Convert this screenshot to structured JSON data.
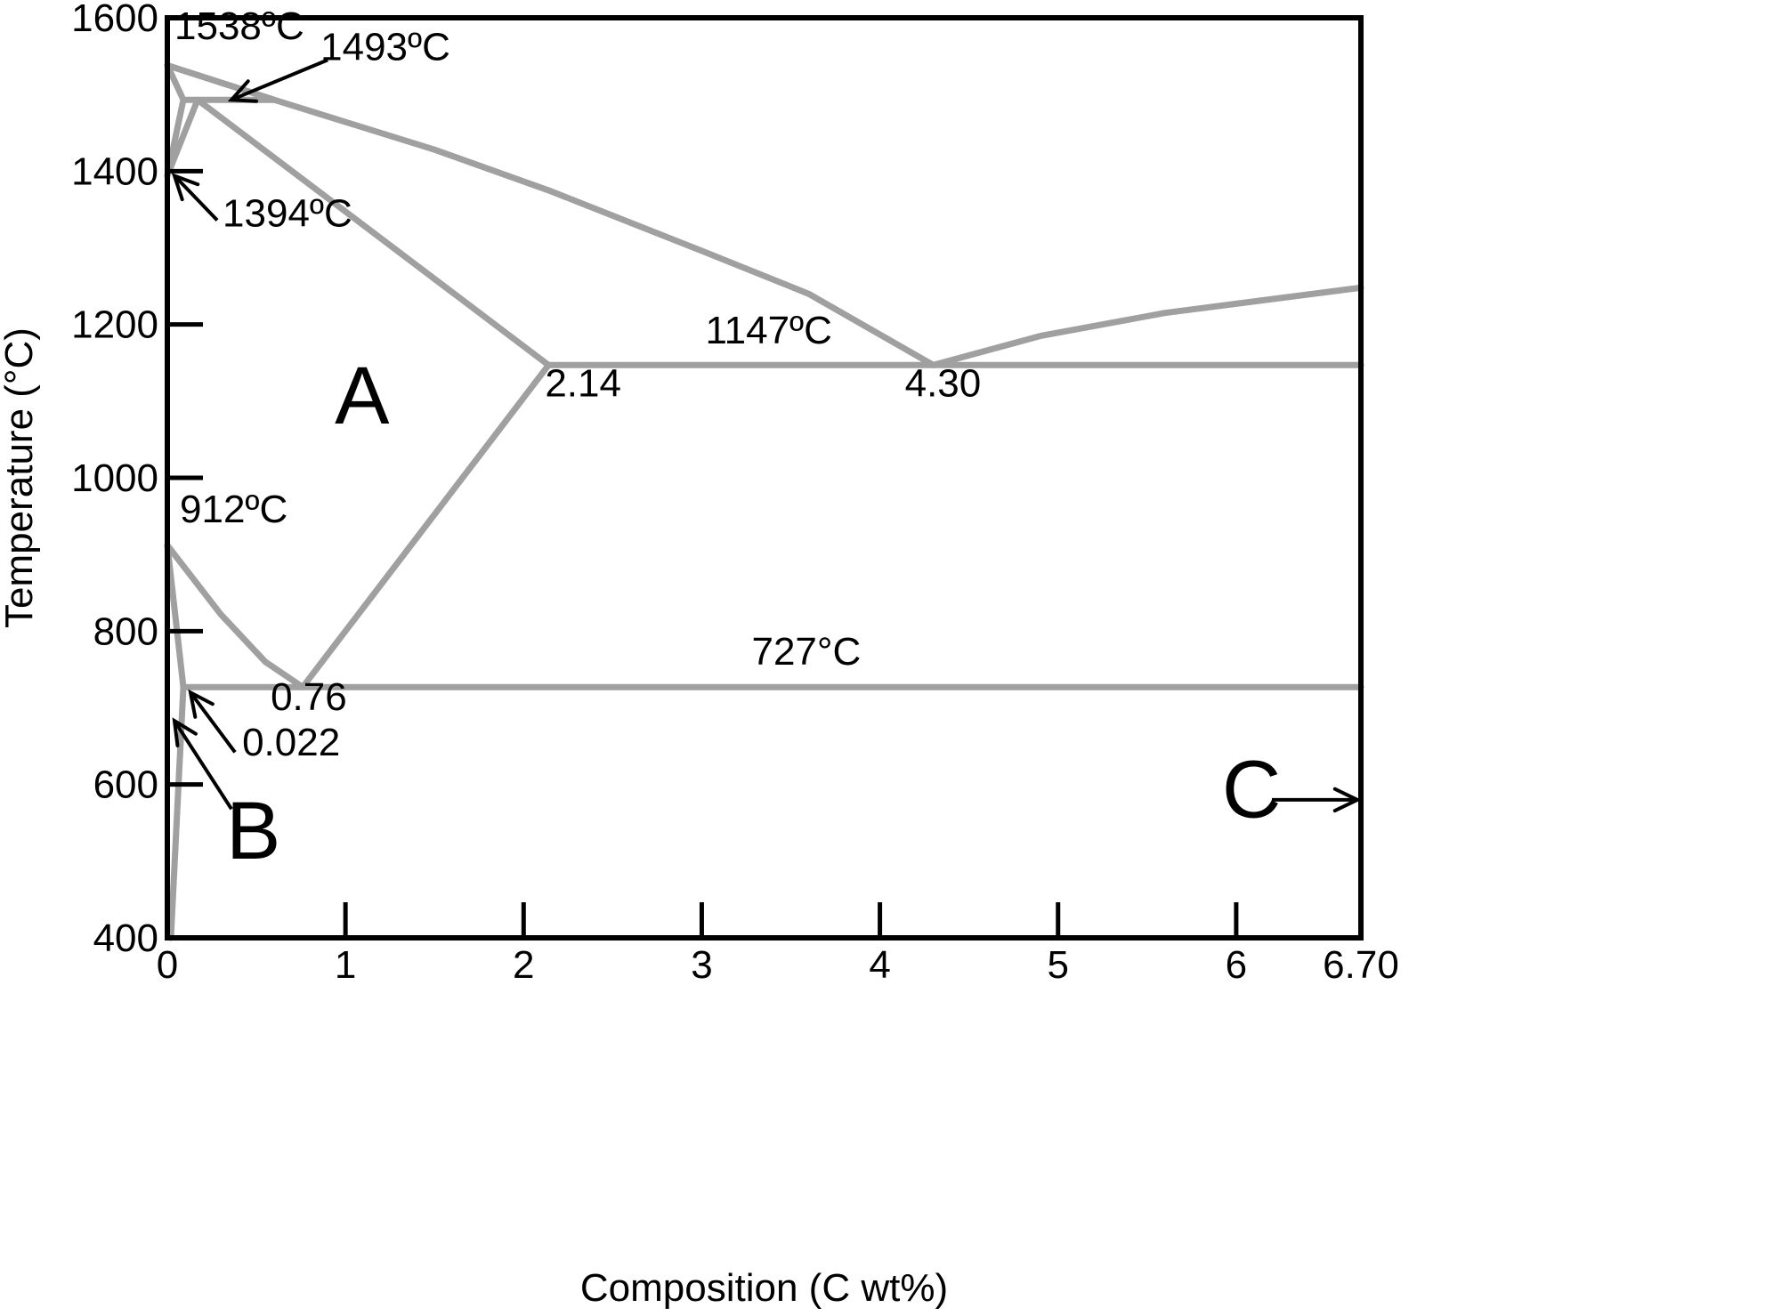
{
  "chart_data": {
    "type": "line",
    "xlabel": "Composition (C wt%)",
    "ylabel": "Temperature (°C)",
    "xlim": [
      0,
      6.7
    ],
    "ylim": [
      400,
      1600
    ],
    "xticks": [
      0,
      1,
      2,
      3,
      4,
      5,
      6,
      6.7
    ],
    "xtick_labels": [
      "0",
      "1",
      "2",
      "3",
      "4",
      "5",
      "6",
      "6.70"
    ],
    "yticks": [
      400,
      600,
      800,
      1000,
      1200,
      1400,
      1600
    ],
    "ytick_labels": [
      "400",
      "600",
      "800",
      "1000",
      "1200",
      "1400",
      "1600"
    ],
    "grid": false,
    "colors": {
      "phase_line": "#a0a0a0",
      "axes": "#000000"
    },
    "series": [
      {
        "points": [
          [
            0,
            1538
          ],
          [
            0.6,
            1493
          ]
        ]
      },
      {
        "points": [
          [
            0,
            1538
          ],
          [
            0.09,
            1493
          ]
        ]
      },
      {
        "points": [
          [
            0.09,
            1493
          ],
          [
            0.6,
            1493
          ]
        ]
      },
      {
        "points": [
          [
            0.09,
            1493
          ],
          [
            0,
            1394
          ]
        ]
      },
      {
        "points": [
          [
            0.17,
            1493
          ],
          [
            0,
            1394
          ]
        ]
      },
      {
        "points": [
          [
            0.17,
            1493
          ],
          [
            2.14,
            1147
          ]
        ]
      },
      {
        "points": [
          [
            0,
            1538
          ],
          [
            0.6,
            1493
          ],
          [
            1.5,
            1428
          ],
          [
            2.14,
            1375
          ],
          [
            3.0,
            1296
          ],
          [
            3.6,
            1240
          ],
          [
            4.3,
            1147
          ]
        ]
      },
      {
        "points": [
          [
            4.3,
            1147
          ],
          [
            4.9,
            1185
          ],
          [
            5.6,
            1215
          ],
          [
            6.7,
            1248
          ]
        ]
      },
      {
        "points": [
          [
            2.14,
            1147
          ],
          [
            6.7,
            1147
          ]
        ]
      },
      {
        "points": [
          [
            2.14,
            1147
          ],
          [
            0.76,
            727
          ]
        ]
      },
      {
        "points": [
          [
            0,
            912
          ],
          [
            0.3,
            822
          ],
          [
            0.55,
            760
          ],
          [
            0.76,
            727
          ]
        ]
      },
      {
        "points": [
          [
            0.09,
            727
          ],
          [
            6.7,
            727
          ]
        ]
      },
      {
        "points": [
          [
            0,
            912
          ],
          [
            0.09,
            727
          ]
        ]
      },
      {
        "points": [
          [
            0.09,
            727
          ],
          [
            0.02,
            400
          ]
        ]
      }
    ],
    "annotations": [
      {
        "text": "1538ºC",
        "x": 0.04,
        "y": 1572
      },
      {
        "text": "1493ºC",
        "x": 0.86,
        "y": 1545
      },
      {
        "text": "1394ºC",
        "x": 0.31,
        "y": 1328
      },
      {
        "text": "1147ºC",
        "x": 3.02,
        "y": 1175
      },
      {
        "text": "2.14",
        "x": 2.12,
        "y": 1106
      },
      {
        "text": "4.30",
        "x": 4.14,
        "y": 1106
      },
      {
        "text": "912ºC",
        "x": 0.07,
        "y": 942
      },
      {
        "text": "727°C",
        "x": 3.28,
        "y": 756
      },
      {
        "text": "0.76",
        "x": 0.58,
        "y": 697
      },
      {
        "text": "0.022",
        "x": 0.42,
        "y": 638
      },
      {
        "text": "A",
        "x": 0.94,
        "y": 1071
      },
      {
        "text": "B",
        "x": 0.33,
        "y": 503
      },
      {
        "text": "C",
        "x": 5.92,
        "y": 557
      }
    ],
    "arrows": [
      {
        "from": [
          0.9,
          1545
        ],
        "to": [
          0.36,
          1493
        ]
      },
      {
        "from": [
          0.28,
          1336
        ],
        "to": [
          0.04,
          1394
        ]
      },
      {
        "from": [
          0.38,
          642
        ],
        "to": [
          0.13,
          720
        ]
      },
      {
        "from": [
          0.36,
          568
        ],
        "to": [
          0.04,
          683
        ]
      },
      {
        "from": [
          6.2,
          580
        ],
        "to": [
          6.68,
          580
        ]
      }
    ]
  }
}
